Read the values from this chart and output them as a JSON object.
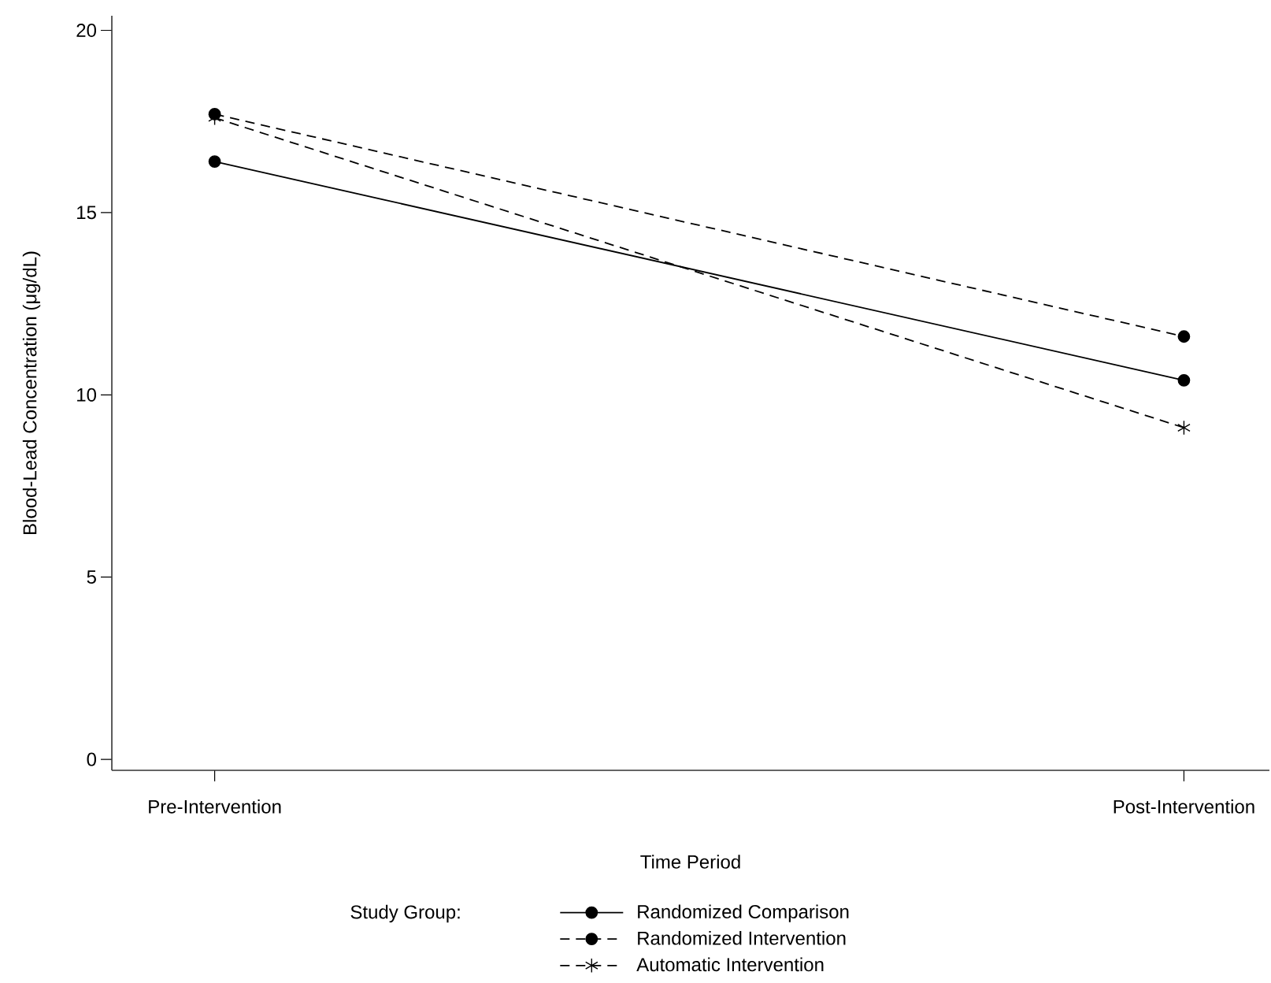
{
  "chart_data": {
    "type": "line",
    "xlabel": "Time Period",
    "ylabel": "Blood-Lead Concentration (μg/dL)",
    "legend_title": "Study Group:",
    "categories": [
      "Pre-Intervention",
      "Post-Intervention"
    ],
    "series": [
      {
        "name": "Randomized Comparison",
        "color": "#000000",
        "values": [
          16.4,
          10.4
        ],
        "marker": "circle",
        "line_style": "solid"
      },
      {
        "name": "Randomized Intervention",
        "color": "#000000",
        "values": [
          17.7,
          11.6
        ],
        "marker": "circle",
        "line_style": "dashed"
      },
      {
        "name": "Automatic Intervention",
        "color": "#000000",
        "values": [
          17.6,
          9.1
        ],
        "marker": "cross",
        "line_style": "dashed"
      }
    ],
    "ylim": [
      -0.3,
      20.4
    ],
    "yticks": [
      0,
      5,
      10,
      15,
      20
    ],
    "legend": "bottom"
  }
}
